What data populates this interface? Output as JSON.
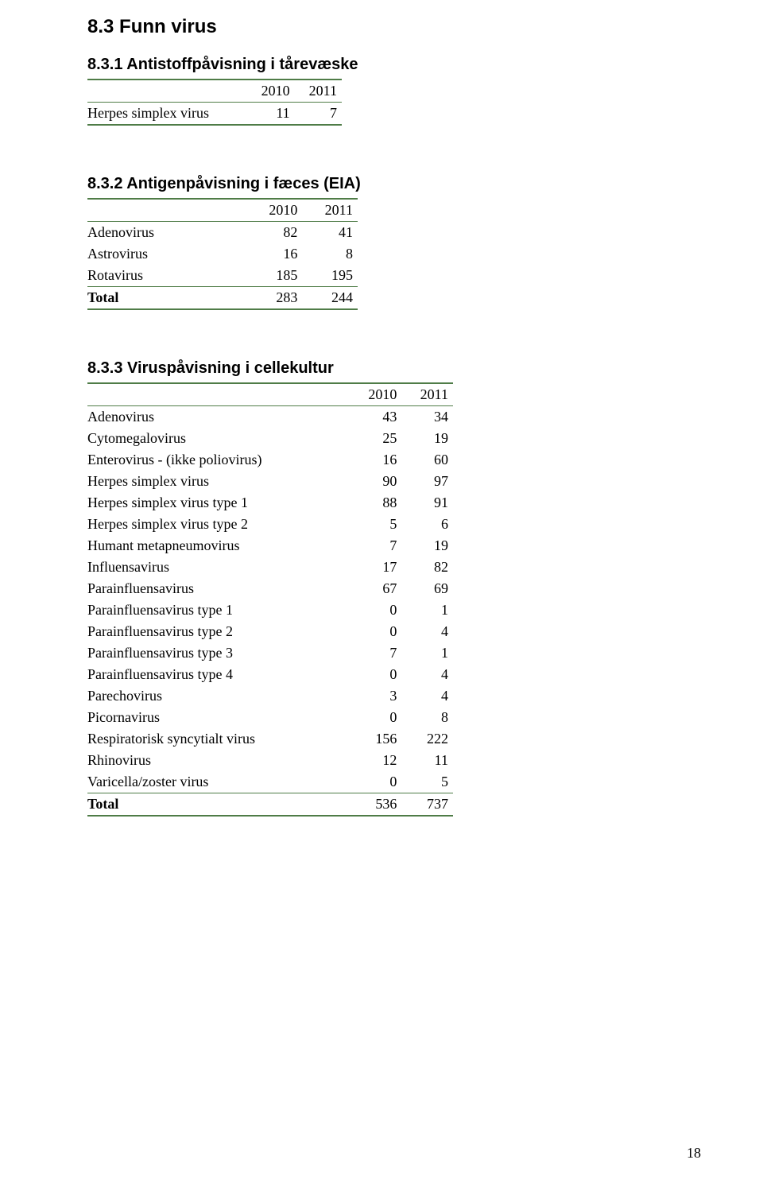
{
  "page": {
    "number": "18"
  },
  "section": {
    "title": "8.3 Funn virus"
  },
  "colors": {
    "rule": "#4f7c47",
    "text": "#000000",
    "background": "#ffffff"
  },
  "fonts": {
    "heading_family": "Arial",
    "body_family": "Times New Roman",
    "h2_size_pt": 18,
    "h3_size_pt": 15,
    "body_size_pt": 14
  },
  "tables": {
    "t1": {
      "title": "8.3.1 Antistoffpåvisning i tårevæske",
      "year_cols": [
        "2010",
        "2011"
      ],
      "rows": [
        {
          "label": "Herpes simplex virus",
          "v": [
            "11",
            "7"
          ]
        }
      ]
    },
    "t2": {
      "title": "8.3.2 Antigenpåvisning i fæces (EIA)",
      "year_cols": [
        "2010",
        "2011"
      ],
      "rows": [
        {
          "label": "Adenovirus",
          "v": [
            "82",
            "41"
          ]
        },
        {
          "label": "Astrovirus",
          "v": [
            "16",
            "8"
          ]
        },
        {
          "label": "Rotavirus",
          "v": [
            "185",
            "195"
          ]
        }
      ],
      "total": {
        "label": "Total",
        "v": [
          "283",
          "244"
        ]
      }
    },
    "t3": {
      "title": "8.3.3 Viruspåvisning i cellekultur",
      "year_cols": [
        "2010",
        "2011"
      ],
      "rows": [
        {
          "label": "Adenovirus",
          "v": [
            "43",
            "34"
          ]
        },
        {
          "label": "Cytomegalovirus",
          "v": [
            "25",
            "19"
          ]
        },
        {
          "label": "Enterovirus - (ikke poliovirus)",
          "v": [
            "16",
            "60"
          ]
        },
        {
          "label": "Herpes simplex virus",
          "v": [
            "90",
            "97"
          ]
        },
        {
          "label": "Herpes simplex virus type 1",
          "v": [
            "88",
            "91"
          ]
        },
        {
          "label": "Herpes simplex virus type 2",
          "v": [
            "5",
            "6"
          ]
        },
        {
          "label": "Humant metapneumovirus",
          "v": [
            "7",
            "19"
          ]
        },
        {
          "label": "Influensavirus",
          "v": [
            "17",
            "82"
          ]
        },
        {
          "label": "Parainfluensavirus",
          "v": [
            "67",
            "69"
          ]
        },
        {
          "label": "Parainfluensavirus type 1",
          "v": [
            "0",
            "1"
          ]
        },
        {
          "label": "Parainfluensavirus type 2",
          "v": [
            "0",
            "4"
          ]
        },
        {
          "label": "Parainfluensavirus type 3",
          "v": [
            "7",
            "1"
          ]
        },
        {
          "label": "Parainfluensavirus type 4",
          "v": [
            "0",
            "4"
          ]
        },
        {
          "label": "Parechovirus",
          "v": [
            "3",
            "4"
          ]
        },
        {
          "label": "Picornavirus",
          "v": [
            "0",
            "8"
          ]
        },
        {
          "label": "Respiratorisk syncytialt virus",
          "v": [
            "156",
            "222"
          ]
        },
        {
          "label": "Rhinovirus",
          "v": [
            "12",
            "11"
          ]
        },
        {
          "label": "Varicella/zoster virus",
          "v": [
            "0",
            "5"
          ]
        }
      ],
      "total": {
        "label": "Total",
        "v": [
          "536",
          "737"
        ]
      }
    }
  }
}
